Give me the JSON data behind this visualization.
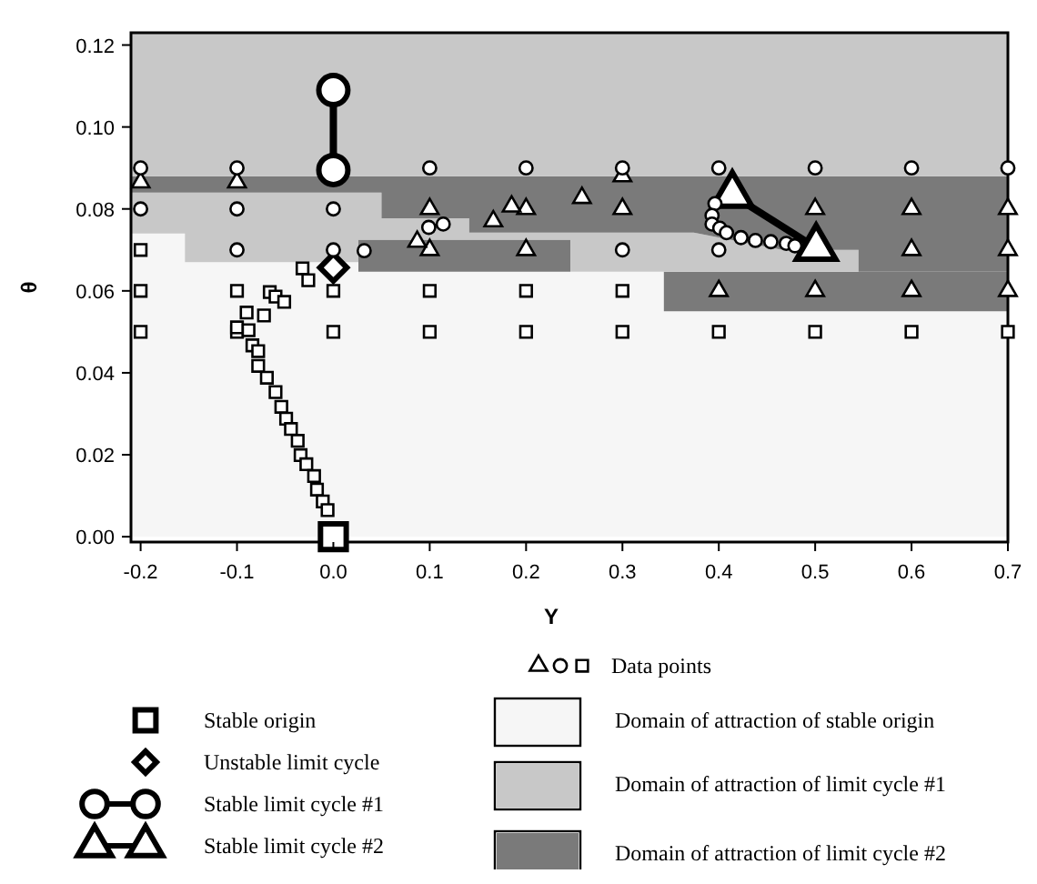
{
  "chart_data": {
    "type": "scatter",
    "xlabel": "Y",
    "ylabel": "θ",
    "xlim": [
      -0.21,
      0.7
    ],
    "ylim": [
      -0.0013,
      0.123
    ],
    "xticks": [
      -0.2,
      -0.1,
      {
        "value": 0,
        "label": "0.0"
      },
      0.1,
      0.2,
      0.3,
      0.4,
      0.5,
      0.6,
      0.7
    ],
    "yticks": [
      {
        "value": 0,
        "label": "0.00"
      },
      {
        "value": 0.02,
        "label": "0.02"
      },
      {
        "value": 0.04,
        "label": "0.04"
      },
      {
        "value": 0.06,
        "label": "0.06"
      },
      {
        "value": 0.08,
        "label": "0.08"
      },
      {
        "value": 0.1,
        "label": "0.10"
      },
      {
        "value": 0.12,
        "label": "0.12"
      }
    ],
    "grid": false,
    "legend": "bottom",
    "stacked": true,
    "series": [
      {
        "name": "Data points",
        "marker": "square",
        "color": "#000000",
        "x": [
          -0.2,
          -0.2,
          -0.2,
          -0.1,
          -0.1,
          0,
          0,
          0.1,
          0.1,
          0.2,
          0.2,
          0.3,
          0.3,
          0.4,
          0.5,
          0.6,
          0.7,
          -0.032,
          -0.026,
          -0.066,
          -0.06,
          -0.051,
          -0.09,
          -0.072,
          -0.1,
          -0.088,
          -0.084,
          -0.078,
          -0.078,
          -0.069,
          -0.06,
          -0.054,
          -0.049,
          -0.044,
          -0.037,
          -0.034,
          -0.028,
          -0.02,
          -0.017,
          -0.011,
          -0.006
        ],
        "values": [
          0.07,
          0.06,
          0.05,
          0.06,
          0.05,
          0.06,
          0.05,
          0.06,
          0.05,
          0.06,
          0.05,
          0.06,
          0.05,
          0.05,
          0.05,
          0.05,
          0.05,
          0.0655,
          0.0626,
          0.0597,
          0.0586,
          0.0573,
          0.0547,
          0.054,
          0.0511,
          0.0504,
          0.0467,
          0.0453,
          0.0417,
          0.0388,
          0.0353,
          0.0317,
          0.0288,
          0.0263,
          0.0234,
          0.0199,
          0.0177,
          0.0148,
          0.0115,
          0.0086,
          0.0065
        ]
      },
      {
        "marker": "triangle",
        "color": "#000000",
        "x": [
          -0.2,
          -0.1,
          0.1,
          0.1,
          0.2,
          0.2,
          0.3,
          0.3,
          0.4,
          0.5,
          0.5,
          0.6,
          0.6,
          0.6,
          0.7,
          0.7,
          0.7,
          0.087,
          0.166,
          0.185,
          0.258
        ],
        "values": [
          0.0865,
          0.0865,
          0.08,
          0.07,
          0.08,
          0.07,
          0.088,
          0.08,
          0.06,
          0.08,
          0.06,
          0.08,
          0.07,
          0.06,
          0.08,
          0.07,
          0.06,
          0.072,
          0.077,
          0.0806,
          0.0827
        ]
      },
      {
        "marker": "circle",
        "color": "#000000",
        "x": [
          -0.2,
          -0.2,
          -0.1,
          -0.1,
          -0.1,
          0,
          0,
          0.1,
          0.2,
          0.3,
          0.3,
          0.4,
          0.4,
          0.5,
          0.6,
          0.7,
          0.032,
          0.099,
          0.114,
          0.396,
          0.393,
          0.393,
          0.401,
          0.408,
          0.423,
          0.438,
          0.454,
          0.47,
          0.479
        ],
        "values": [
          0.09,
          0.08,
          0.09,
          0.08,
          0.07,
          0.08,
          0.07,
          0.09,
          0.09,
          0.09,
          0.07,
          0.09,
          0.07,
          0.09,
          0.09,
          0.09,
          0.0698,
          0.0755,
          0.0763,
          0.0813,
          0.0784,
          0.0763,
          0.0753,
          0.0742,
          0.073,
          0.0723,
          0.072,
          0.0716,
          0.071
        ]
      },
      {
        "name": "Domain of attraction of stable origin",
        "type": "area",
        "color": "#f6f6f6",
        "x": [
          -0.21,
          -0.154,
          -0.154,
          0.026,
          0.026,
          0.05,
          0.05,
          0.141,
          0.141,
          0.246,
          0.246,
          0.343,
          0.343,
          0.374,
          0.466,
          0.545,
          0.545,
          0.7
        ],
        "values": [
          0.074,
          0.074,
          0.067,
          0.067,
          0.0647,
          0.0647,
          0.0647,
          0.0647,
          0.0647,
          0.0647,
          0.0647,
          0.0647,
          0.055,
          0.055,
          0.055,
          0.055,
          0.055,
          0.055
        ]
      },
      {
        "type": "area",
        "color": "#7a7a7a",
        "x": [
          -0.21,
          -0.154,
          -0.154,
          0.026,
          0.026,
          0.05,
          0.05,
          0.141,
          0.141,
          0.246,
          0.246,
          0.343,
          0.343,
          0.374,
          0.466,
          0.545,
          0.545,
          0.7
        ],
        "values": [
          0,
          0,
          0,
          0,
          0.0078,
          0.0078,
          0.0078,
          0.0078,
          0.0078,
          0.0078,
          0,
          0,
          0.0097,
          0.0097,
          0.0097,
          0.0097,
          0.0097,
          0.0097
        ]
      },
      {
        "name": "Domain of attraction of limit cycle #1",
        "type": "area",
        "color": "#c8c8c8",
        "x": [
          -0.21,
          -0.154,
          -0.154,
          0.026,
          0.026,
          0.05,
          0.05,
          0.141,
          0.141,
          0.246,
          0.246,
          0.343,
          0.343,
          0.374,
          0.466,
          0.545,
          0.545,
          0.7
        ],
        "values": [
          0.01,
          0.01,
          0.017,
          0.017,
          0.0115,
          0.0115,
          0.0052,
          0.0052,
          0.0017,
          0.0017,
          0.0095,
          0.0095,
          0.0095,
          0.0095,
          0.0053,
          0.0053,
          0,
          0
        ]
      },
      {
        "name": "Domain of attraction of limit cycle #2",
        "type": "area",
        "color": "#7a7a7a",
        "x": [
          -0.21,
          -0.154,
          -0.154,
          0.026,
          0.026,
          0.05,
          0.05,
          0.141,
          0.141,
          0.246,
          0.246,
          0.343,
          0.343,
          0.374,
          0.466,
          0.545,
          0.545,
          0.7
        ],
        "values": [
          0.004,
          0.004,
          0.004,
          0.004,
          0.004,
          0.004,
          0.0103,
          0.0103,
          0.0138,
          0.0138,
          0.0138,
          0.0138,
          0.0138,
          0.0138,
          0.018,
          0.018,
          0.0233,
          0.0233
        ]
      },
      {
        "type": "area",
        "color": "#c8c8c8",
        "x": [
          -0.21,
          -0.154,
          -0.154,
          0.026,
          0.026,
          0.05,
          0.05,
          0.141,
          0.141,
          0.246,
          0.246,
          0.343,
          0.343,
          0.374,
          0.466,
          0.545,
          0.545,
          0.7
        ],
        "values": [
          0.035,
          0.035,
          0.035,
          0.035,
          0.035,
          0.035,
          0.035,
          0.035,
          0.035,
          0.035,
          0.035,
          0.035,
          0.035,
          0.035,
          0.035,
          0.035,
          0.035,
          0.035
        ]
      },
      {
        "name": "Stable origin",
        "type": "scatter",
        "marker": "square",
        "color": "#000000",
        "x": [
          0
        ],
        "values": [
          0
        ]
      },
      {
        "name": "Unstable limit cycle",
        "type": "scatter",
        "marker": "diamond",
        "color": "#000000",
        "x": [
          0
        ],
        "values": [
          0.0657
        ]
      },
      {
        "name": "Stable limit cycle #1",
        "type": "line",
        "marker": "circle",
        "color": "#000000",
        "x": [
          0,
          0
        ],
        "values": [
          0.109,
          0.0895
        ]
      },
      {
        "name": "Stable limit cycle #2",
        "type": "line",
        "marker": "triangle",
        "color": "#000000",
        "x": [
          0.414,
          0.501
        ],
        "values": [
          0.0834,
          0.0705
        ]
      }
    ]
  }
}
